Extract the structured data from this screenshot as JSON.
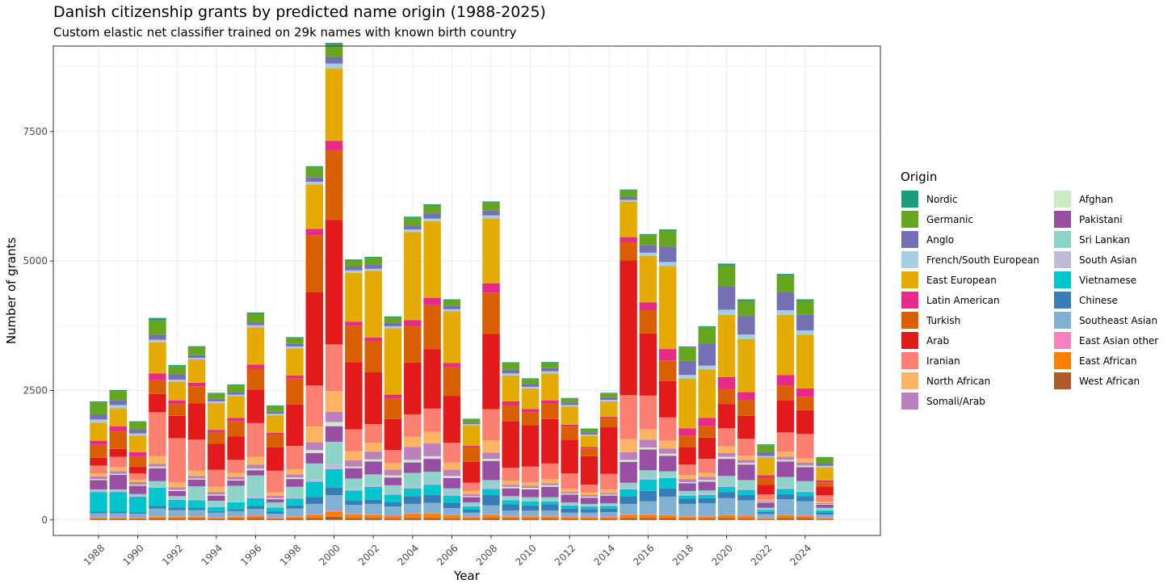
{
  "chart_data": {
    "type": "bar",
    "stacked": true,
    "title": "Danish citizenship grants by predicted name origin (1988-2025)",
    "subtitle": "Custom elastic net classifier trained on 29k names with known birth country",
    "xlabel": "Year",
    "ylabel": "Number of grants",
    "ylim": [
      -300,
      9150
    ],
    "yticks": [
      0,
      2500,
      5000,
      7500
    ],
    "ytick_labels": [
      "0",
      "2500",
      "5000",
      "7500"
    ],
    "xticks": [
      1988,
      1990,
      1992,
      1994,
      1996,
      1998,
      2000,
      2002,
      2004,
      2006,
      2008,
      2010,
      2012,
      2014,
      2016,
      2018,
      2020,
      2022,
      2024
    ],
    "xtick_labels": [
      "1988",
      "1990",
      "1992",
      "1994",
      "1996",
      "1998",
      "2000",
      "2002",
      "2004",
      "2006",
      "2008",
      "2010",
      "2012",
      "2014",
      "2016",
      "2018",
      "2020",
      "2022",
      "2024"
    ],
    "legend_title": "Origin",
    "legend_position": "right",
    "categories": [
      1988,
      1989,
      1990,
      1991,
      1992,
      1993,
      1994,
      1995,
      1996,
      1997,
      1998,
      1999,
      2000,
      2001,
      2002,
      2003,
      2004,
      2005,
      2006,
      2007,
      2008,
      2009,
      2010,
      2011,
      2012,
      2013,
      2014,
      2015,
      2016,
      2017,
      2018,
      2019,
      2020,
      2021,
      2022,
      2023,
      2024,
      2025
    ],
    "stack_order": [
      "West African",
      "East African",
      "East Asian other",
      "Southeast Asian",
      "Chinese",
      "Vietnamese",
      "South Asian",
      "Sri Lankan",
      "Pakistani",
      "Afghan",
      "Somali/Arab",
      "North African",
      "Iranian",
      "Arab",
      "Turkish",
      "Latin American",
      "East European",
      "French/South European",
      "Anglo",
      "Germanic",
      "Nordic"
    ],
    "series": [
      {
        "name": "Nordic",
        "color": "#1b9e77",
        "values": [
          20,
          20,
          15,
          50,
          20,
          15,
          15,
          15,
          25,
          20,
          20,
          20,
          40,
          20,
          20,
          20,
          25,
          25,
          20,
          15,
          20,
          15,
          15,
          20,
          15,
          15,
          15,
          20,
          20,
          30,
          20,
          20,
          40,
          30,
          15,
          30,
          30,
          10
        ]
      },
      {
        "name": "Germanic",
        "color": "#66a61e",
        "values": [
          230,
          180,
          140,
          270,
          160,
          160,
          100,
          130,
          170,
          100,
          110,
          190,
          230,
          110,
          130,
          100,
          150,
          150,
          100,
          60,
          150,
          130,
          90,
          100,
          70,
          60,
          70,
          120,
          200,
          300,
          260,
          310,
          400,
          290,
          140,
          320,
          270,
          110
        ]
      },
      {
        "name": "Anglo",
        "color": "#7570b3",
        "values": [
          100,
          90,
          80,
          100,
          100,
          50,
          50,
          50,
          50,
          40,
          50,
          90,
          130,
          80,
          80,
          70,
          70,
          100,
          70,
          30,
          100,
          70,
          60,
          60,
          50,
          40,
          50,
          60,
          140,
          300,
          270,
          430,
          450,
          360,
          70,
          350,
          300,
          50
        ]
      },
      {
        "name": "French/South European",
        "color": "#a6cee3",
        "values": [
          60,
          60,
          40,
          50,
          40,
          30,
          30,
          30,
          40,
          30,
          40,
          50,
          90,
          50,
          40,
          40,
          50,
          50,
          40,
          20,
          60,
          40,
          30,
          40,
          30,
          20,
          30,
          40,
          60,
          80,
          70,
          70,
          100,
          90,
          30,
          90,
          80,
          30
        ]
      },
      {
        "name": "East European",
        "color": "#e6ab02",
        "values": [
          350,
          350,
          320,
          600,
          360,
          450,
          520,
          420,
          720,
          340,
          520,
          860,
          1400,
          940,
          1290,
          1280,
          1700,
          1480,
          1000,
          400,
          1250,
          500,
          400,
          520,
          350,
          220,
          300,
          680,
          900,
          1600,
          960,
          940,
          1200,
          1020,
          340,
          1160,
          1040,
          250
        ]
      },
      {
        "name": "Latin American",
        "color": "#e7298a",
        "values": [
          80,
          90,
          80,
          130,
          70,
          70,
          50,
          60,
          80,
          30,
          60,
          120,
          180,
          80,
          70,
          70,
          120,
          140,
          80,
          30,
          180,
          80,
          60,
          60,
          40,
          30,
          30,
          100,
          150,
          220,
          140,
          160,
          230,
          160,
          50,
          200,
          160,
          40
        ]
      },
      {
        "name": "Turkish",
        "color": "#d95f02",
        "values": [
          250,
          350,
          200,
          270,
          230,
          330,
          220,
          300,
          400,
          250,
          500,
          1100,
          1350,
          700,
          600,
          400,
          700,
          850,
          560,
          280,
          800,
          300,
          250,
          300,
          250,
          150,
          170,
          350,
          450,
          400,
          230,
          220,
          290,
          300,
          140,
          290,
          260,
          80
        ]
      },
      {
        "name": "Arab",
        "color": "#e31a1c",
        "values": [
          150,
          150,
          130,
          350,
          430,
          700,
          500,
          450,
          650,
          450,
          800,
          1800,
          2400,
          1300,
          1000,
          600,
          1000,
          1150,
          900,
          400,
          1450,
          900,
          800,
          860,
          650,
          550,
          900,
          2600,
          1200,
          700,
          330,
          410,
          470,
          440,
          180,
          620,
          460,
          170
        ]
      },
      {
        "name": "Iranian",
        "color": "#fb8072",
        "values": [
          150,
          200,
          120,
          850,
          850,
          600,
          330,
          250,
          650,
          420,
          450,
          800,
          900,
          420,
          360,
          250,
          430,
          450,
          380,
          160,
          600,
          250,
          300,
          300,
          300,
          150,
          300,
          850,
          650,
          450,
          200,
          270,
          350,
          330,
          100,
          370,
          470,
          120
        ]
      },
      {
        "name": "North African",
        "color": "#fdb462",
        "values": [
          60,
          80,
          50,
          150,
          100,
          100,
          100,
          80,
          150,
          60,
          100,
          300,
          400,
          180,
          170,
          130,
          200,
          220,
          140,
          60,
          240,
          80,
          70,
          80,
          60,
          50,
          70,
          250,
          200,
          150,
          80,
          80,
          130,
          80,
          30,
          100,
          80,
          30
        ]
      },
      {
        "name": "Somali/Arab",
        "color": "#bc80bd",
        "values": [
          50,
          50,
          50,
          50,
          50,
          50,
          50,
          50,
          80,
          50,
          60,
          150,
          200,
          120,
          150,
          110,
          250,
          250,
          120,
          40,
          120,
          40,
          40,
          40,
          30,
          30,
          30,
          150,
          150,
          100,
          60,
          60,
          70,
          60,
          20,
          60,
          60,
          20
        ]
      },
      {
        "name": "Afghan",
        "color": "#ccebc5",
        "values": [
          20,
          20,
          20,
          30,
          20,
          20,
          20,
          20,
          30,
          20,
          30,
          60,
          80,
          30,
          40,
          40,
          50,
          50,
          40,
          20,
          40,
          30,
          30,
          30,
          20,
          20,
          20,
          40,
          40,
          40,
          20,
          30,
          40,
          30,
          10,
          30,
          30,
          10
        ]
      },
      {
        "name": "Pakistani",
        "color": "#984ea3",
        "values": [
          180,
          280,
          160,
          250,
          100,
          130,
          100,
          100,
          100,
          60,
          150,
          200,
          300,
          200,
          250,
          150,
          200,
          250,
          200,
          100,
          370,
          150,
          150,
          200,
          150,
          120,
          150,
          400,
          400,
          300,
          150,
          170,
          330,
          300,
          100,
          300,
          270,
          60
        ]
      },
      {
        "name": "Sri Lankan",
        "color": "#8dd3c7",
        "values": [
          30,
          30,
          30,
          100,
          50,
          250,
          100,
          300,
          400,
          80,
          200,
          300,
          450,
          200,
          200,
          150,
          250,
          200,
          100,
          60,
          120,
          60,
          60,
          60,
          40,
          30,
          30,
          100,
          140,
          100,
          70,
          70,
          170,
          160,
          30,
          200,
          180,
          40
        ]
      },
      {
        "name": "South Asian",
        "color": "#bebada",
        "values": [
          20,
          20,
          20,
          30,
          20,
          20,
          20,
          20,
          40,
          20,
          30,
          50,
          80,
          30,
          40,
          30,
          50,
          50,
          40,
          20,
          50,
          20,
          20,
          20,
          20,
          20,
          20,
          30,
          40,
          30,
          20,
          20,
          40,
          30,
          10,
          30,
          30,
          10
        ]
      },
      {
        "name": "Vietnamese",
        "color": "#00c5cd",
        "values": [
          380,
          380,
          300,
          350,
          150,
          150,
          80,
          130,
          150,
          80,
          130,
          300,
          350,
          200,
          250,
          150,
          150,
          200,
          140,
          60,
          120,
          80,
          80,
          60,
          60,
          50,
          50,
          130,
          220,
          200,
          60,
          60,
          100,
          100,
          40,
          100,
          80,
          40
        ]
      },
      {
        "name": "Chinese",
        "color": "#377eb8",
        "values": [
          30,
          30,
          30,
          50,
          50,
          40,
          30,
          40,
          60,
          40,
          60,
          130,
          150,
          80,
          80,
          80,
          150,
          150,
          100,
          60,
          200,
          120,
          100,
          120,
          80,
          70,
          70,
          150,
          200,
          160,
          100,
          100,
          120,
          100,
          40,
          100,
          100,
          40
        ]
      },
      {
        "name": "Southeast Asian",
        "color": "#80b1d3",
        "values": [
          80,
          80,
          70,
          150,
          120,
          120,
          90,
          100,
          120,
          70,
          150,
          200,
          300,
          170,
          200,
          170,
          180,
          200,
          130,
          80,
          170,
          100,
          100,
          100,
          80,
          80,
          90,
          200,
          250,
          350,
          230,
          240,
          320,
          290,
          70,
          300,
          270,
          60
        ]
      },
      {
        "name": "East Asian other",
        "color": "#f781bf",
        "values": [
          10,
          10,
          10,
          10,
          10,
          10,
          10,
          10,
          10,
          10,
          10,
          10,
          20,
          10,
          10,
          10,
          10,
          10,
          10,
          10,
          10,
          10,
          10,
          10,
          10,
          10,
          10,
          10,
          10,
          10,
          10,
          10,
          10,
          10,
          10,
          10,
          10,
          10
        ]
      },
      {
        "name": "East African",
        "color": "#ff7f00",
        "values": [
          20,
          20,
          20,
          30,
          30,
          30,
          20,
          30,
          40,
          20,
          30,
          60,
          100,
          70,
          60,
          50,
          80,
          80,
          60,
          30,
          60,
          40,
          40,
          40,
          30,
          30,
          30,
          60,
          60,
          50,
          40,
          40,
          50,
          50,
          20,
          50,
          40,
          20
        ]
      },
      {
        "name": "West African",
        "color": "#b15928",
        "values": [
          20,
          20,
          20,
          30,
          30,
          30,
          20,
          30,
          40,
          20,
          30,
          40,
          60,
          40,
          40,
          30,
          40,
          40,
          30,
          20,
          40,
          30,
          30,
          30,
          20,
          20,
          20,
          40,
          40,
          40,
          30,
          30,
          40,
          30,
          15,
          40,
          40,
          15
        ]
      }
    ]
  }
}
